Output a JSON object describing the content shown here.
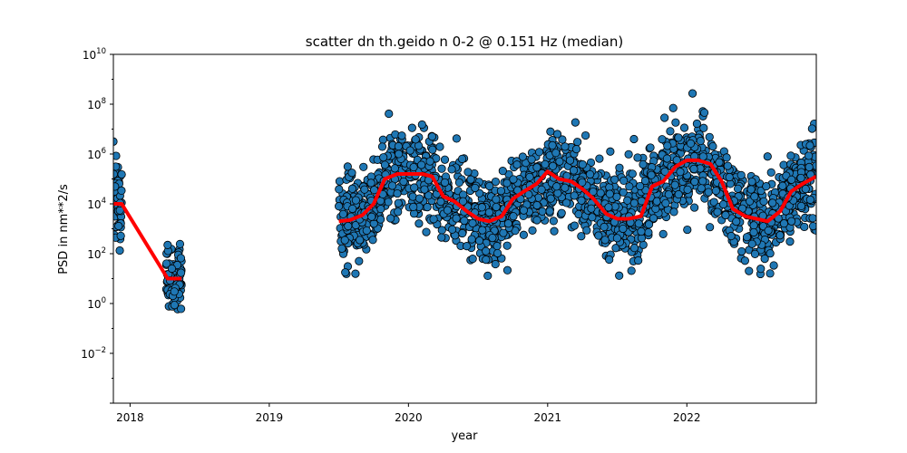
{
  "chart_data": {
    "type": "scatter",
    "title": "scatter dn th.geido n 0-2 @ 0.151 Hz (median)",
    "xlabel": "year",
    "ylabel": "PSD in nm**2/s",
    "y_scale": "log",
    "xlim": [
      2017.88,
      2022.93
    ],
    "ylim_log10": [
      -4,
      10
    ],
    "x_ticks": [
      {
        "value": 2018,
        "label": "2018"
      },
      {
        "value": 2019,
        "label": "2019"
      },
      {
        "value": 2020,
        "label": "2020"
      },
      {
        "value": 2021,
        "label": "2021"
      },
      {
        "value": 2022,
        "label": "2022"
      }
    ],
    "y_ticks": [
      {
        "exp": 10,
        "base": "10",
        "sup": "10"
      },
      {
        "exp": 8,
        "base": "10",
        "sup": "8"
      },
      {
        "exp": 6,
        "base": "10",
        "sup": "6"
      },
      {
        "exp": 4,
        "base": "10",
        "sup": "4"
      },
      {
        "exp": 2,
        "base": "10",
        "sup": "2"
      },
      {
        "exp": 0,
        "base": "10",
        "sup": "0"
      },
      {
        "exp": -2,
        "base": "10",
        "sup": "−2"
      }
    ],
    "scatter_color": "#1f77b4",
    "median_color": "#ff0000",
    "series": [
      {
        "kind": "median",
        "x_log10y": [
          [
            2017.88,
            4.0
          ],
          [
            2017.94,
            4.0
          ],
          [
            2018.27,
            1.0
          ],
          [
            2018.37,
            1.0
          ],
          [
            2019.5,
            3.3
          ],
          [
            2019.58,
            3.35
          ],
          [
            2019.67,
            3.55
          ],
          [
            2019.75,
            4.0
          ],
          [
            2019.83,
            5.0
          ],
          [
            2019.92,
            5.2
          ],
          [
            2020.0,
            5.2
          ],
          [
            2020.1,
            5.2
          ],
          [
            2020.17,
            5.1
          ],
          [
            2020.25,
            4.3
          ],
          [
            2020.33,
            4.1
          ],
          [
            2020.42,
            3.7
          ],
          [
            2020.5,
            3.4
          ],
          [
            2020.58,
            3.3
          ],
          [
            2020.67,
            3.5
          ],
          [
            2020.75,
            4.2
          ],
          [
            2020.83,
            4.5
          ],
          [
            2020.92,
            4.8
          ],
          [
            2021.0,
            5.3
          ],
          [
            2021.08,
            5.0
          ],
          [
            2021.17,
            4.9
          ],
          [
            2021.25,
            4.6
          ],
          [
            2021.33,
            4.2
          ],
          [
            2021.42,
            3.6
          ],
          [
            2021.5,
            3.4
          ],
          [
            2021.58,
            3.4
          ],
          [
            2021.67,
            3.5
          ],
          [
            2021.75,
            4.7
          ],
          [
            2021.83,
            4.9
          ],
          [
            2021.92,
            5.5
          ],
          [
            2022.0,
            5.75
          ],
          [
            2022.08,
            5.75
          ],
          [
            2022.17,
            5.6
          ],
          [
            2022.25,
            4.9
          ],
          [
            2022.33,
            3.8
          ],
          [
            2022.42,
            3.5
          ],
          [
            2022.5,
            3.4
          ],
          [
            2022.58,
            3.3
          ],
          [
            2022.67,
            3.7
          ],
          [
            2022.75,
            4.5
          ],
          [
            2022.83,
            4.8
          ],
          [
            2022.93,
            5.1
          ]
        ]
      }
    ]
  }
}
